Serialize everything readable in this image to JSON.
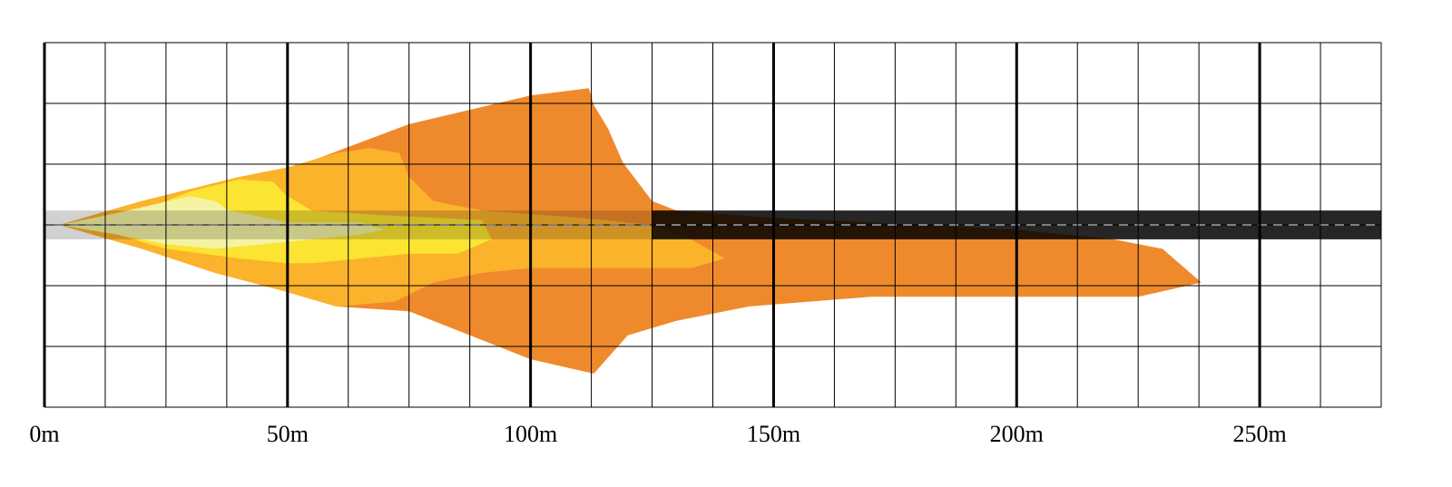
{
  "chart_data": {
    "type": "area",
    "title": "",
    "xlabel": "",
    "ylabel": "",
    "x_unit": "m",
    "xlim": [
      0,
      275
    ],
    "ylim": [
      -38,
      38
    ],
    "major_ticks": [
      0,
      50,
      100,
      150,
      200,
      250
    ],
    "tick_labels": [
      "0m",
      "50m",
      "100m",
      "150m",
      "200m",
      "250m"
    ],
    "minor_tick_step": 12.5,
    "y_grid_step": 12.5,
    "road": {
      "y_min": -3,
      "y_max": 3,
      "centerline": "dashed",
      "color": "#000000"
    },
    "zones": [
      {
        "id": "zone-4",
        "color": "#ef8a2c",
        "outline": [
          [
            3,
            0
          ],
          [
            50,
            11.5
          ],
          [
            75,
            21
          ],
          [
            100,
            27
          ],
          [
            112,
            28.5
          ],
          [
            113,
            25
          ],
          [
            116,
            20
          ],
          [
            119,
            13
          ],
          [
            122,
            9
          ],
          [
            125,
            5
          ],
          [
            130,
            3
          ],
          [
            150,
            1.5
          ],
          [
            200,
            -1
          ],
          [
            220,
            -3
          ],
          [
            230,
            -5
          ],
          [
            238,
            -12
          ],
          [
            225,
            -15
          ],
          [
            200,
            -15
          ],
          [
            170,
            -15
          ],
          [
            145,
            -17
          ],
          [
            130,
            -20
          ],
          [
            120,
            -23
          ],
          [
            113,
            -31
          ],
          [
            100,
            -28
          ],
          [
            75,
            -18
          ],
          [
            60,
            -17
          ],
          [
            50,
            -14
          ],
          [
            30,
            -7
          ]
        ]
      },
      {
        "id": "zone-3",
        "color": "#fbb32b",
        "outline": [
          [
            3,
            0
          ],
          [
            20,
            5
          ],
          [
            40,
            10
          ],
          [
            50,
            12
          ],
          [
            60,
            15
          ],
          [
            67,
            16
          ],
          [
            73,
            15
          ],
          [
            75,
            10
          ],
          [
            80,
            5
          ],
          [
            90,
            3
          ],
          [
            110,
            1.5
          ],
          [
            125,
            0
          ],
          [
            133,
            -3
          ],
          [
            140,
            -7
          ],
          [
            133,
            -9
          ],
          [
            120,
            -9
          ],
          [
            100,
            -9
          ],
          [
            90,
            -10
          ],
          [
            80,
            -12
          ],
          [
            72,
            -16
          ],
          [
            60,
            -17
          ],
          [
            50,
            -14
          ],
          [
            35,
            -10
          ],
          [
            20,
            -5
          ]
        ]
      },
      {
        "id": "zone-2",
        "color": "#fbe432",
        "outline": [
          [
            3,
            0
          ],
          [
            20,
            3
          ],
          [
            30,
            7
          ],
          [
            40,
            9.5
          ],
          [
            47,
            9
          ],
          [
            50,
            6
          ],
          [
            55,
            3
          ],
          [
            70,
            2
          ],
          [
            90,
            1
          ],
          [
            92,
            -3
          ],
          [
            85,
            -6
          ],
          [
            75,
            -6
          ],
          [
            65,
            -7
          ],
          [
            55,
            -8
          ],
          [
            50,
            -8
          ],
          [
            40,
            -7
          ],
          [
            25,
            -5
          ],
          [
            15,
            -2
          ]
        ]
      },
      {
        "id": "zone-1",
        "color": "#f4f3a4",
        "outline": [
          [
            3,
            0
          ],
          [
            15,
            2.5
          ],
          [
            30,
            6
          ],
          [
            35,
            5
          ],
          [
            38,
            3
          ],
          [
            50,
            0.5
          ],
          [
            65,
            0.5
          ],
          [
            70,
            -1
          ],
          [
            65,
            -2
          ],
          [
            55,
            -3
          ],
          [
            45,
            -4
          ],
          [
            35,
            -5
          ],
          [
            25,
            -4
          ],
          [
            15,
            -2
          ]
        ]
      }
    ]
  }
}
